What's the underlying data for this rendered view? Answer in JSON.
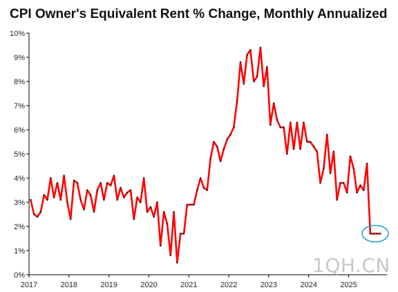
{
  "title": "CPI Owner's Equivalent Rent % Change, Monthly Annualized",
  "watermark": "1QH.CN",
  "colors": {
    "line": "#ff0000",
    "highlight_circle": "#1fa0d8",
    "axis": "#000000"
  },
  "chart_data": {
    "type": "line",
    "title": "CPI Owner's Equivalent Rent % Change, Monthly Annualized",
    "xlabel": "",
    "ylabel": "",
    "x_start": "2017-01",
    "x_end": "2025-12",
    "x_ticks": [
      "2017",
      "2018",
      "2019",
      "2020",
      "2021",
      "2022",
      "2023",
      "2024",
      "2025"
    ],
    "y_ticks": [
      "0%",
      "1%",
      "2%",
      "3%",
      "4%",
      "5%",
      "6%",
      "7%",
      "8%",
      "9%",
      "10%"
    ],
    "ylim": [
      0,
      10
    ],
    "grid": false,
    "legend": "none",
    "annotation": "circle around the last values",
    "series": [
      {
        "x": [
          "2017-01",
          "2017-02",
          "2017-03",
          "2017-04",
          "2017-05",
          "2017-06",
          "2017-07",
          "2017-08",
          "2017-09",
          "2017-10",
          "2017-11",
          "2017-12",
          "2018-01",
          "2018-02",
          "2018-03",
          "2018-04",
          "2018-05",
          "2018-06",
          "2018-07",
          "2018-08",
          "2018-09",
          "2018-10",
          "2018-11",
          "2018-12",
          "2019-01",
          "2019-02",
          "2019-03",
          "2019-04",
          "2019-05",
          "2019-06",
          "2019-07",
          "2019-08",
          "2019-09",
          "2019-10",
          "2019-11",
          "2019-12",
          "2020-01",
          "2020-02",
          "2020-03",
          "2020-04",
          "2020-05",
          "2020-06",
          "2020-07",
          "2020-08",
          "2020-09",
          "2020-10",
          "2020-11",
          "2020-12",
          "2021-01",
          "2021-02",
          "2021-03",
          "2021-04",
          "2021-05",
          "2021-06",
          "2021-07",
          "2021-08",
          "2021-09",
          "2021-10",
          "2021-11",
          "2021-12",
          "2022-01",
          "2022-02",
          "2022-03",
          "2022-04",
          "2022-05",
          "2022-06",
          "2022-07",
          "2022-08",
          "2022-09",
          "2022-10",
          "2022-11",
          "2022-12",
          "2023-01",
          "2023-02",
          "2023-03",
          "2023-04",
          "2023-05",
          "2023-06",
          "2023-07",
          "2023-08",
          "2023-09",
          "2023-10",
          "2023-11",
          "2023-12",
          "2024-01",
          "2024-02",
          "2024-03",
          "2024-04",
          "2024-05",
          "2024-06",
          "2024-07",
          "2024-08",
          "2024-09",
          "2024-10",
          "2024-11",
          "2024-12",
          "2025-01",
          "2025-02",
          "2025-03",
          "2025-04",
          "2025-05",
          "2025-06",
          "2025-07",
          "2025-08",
          "2025-09",
          "2025-10"
        ],
        "values": [
          3.1,
          2.5,
          2.4,
          2.6,
          3.3,
          3.1,
          4.0,
          3.2,
          3.8,
          3.1,
          4.1,
          3.0,
          2.3,
          3.9,
          3.8,
          3.1,
          2.7,
          3.5,
          3.3,
          2.6,
          3.5,
          3.8,
          3.1,
          3.8,
          3.7,
          4.1,
          3.1,
          3.6,
          3.2,
          3.4,
          3.5,
          2.3,
          3.2,
          3.0,
          4.0,
          2.6,
          2.8,
          2.4,
          3.0,
          1.2,
          2.6,
          2.1,
          0.8,
          2.6,
          0.5,
          1.7,
          1.7,
          2.9,
          2.9,
          2.9,
          3.5,
          4.0,
          3.6,
          3.5,
          4.8,
          5.5,
          5.3,
          4.7,
          5.2,
          5.6,
          5.8,
          6.1,
          7.2,
          8.8,
          7.9,
          9.1,
          9.3,
          8.0,
          8.2,
          9.4,
          7.8,
          8.6,
          6.2,
          7.1,
          6.4,
          6.1,
          6.1,
          5.0,
          6.3,
          5.2,
          6.3,
          5.2,
          6.3,
          5.5,
          5.5,
          5.3,
          5.1,
          3.8,
          4.4,
          5.8,
          4.2,
          5.1,
          3.1,
          3.8,
          3.8,
          3.4,
          4.9,
          4.4,
          3.4,
          3.7,
          3.5,
          4.6,
          1.7,
          1.7,
          1.7,
          1.7
        ]
      }
    ]
  }
}
